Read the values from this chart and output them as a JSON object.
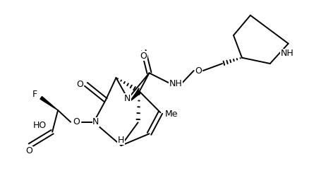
{
  "bg_color": "#ffffff",
  "lw": 1.4,
  "fig_width": 4.39,
  "fig_height": 2.76,
  "dpi": 100,
  "xlim": [
    0,
    10
  ],
  "ylim": [
    0,
    6.3
  ]
}
